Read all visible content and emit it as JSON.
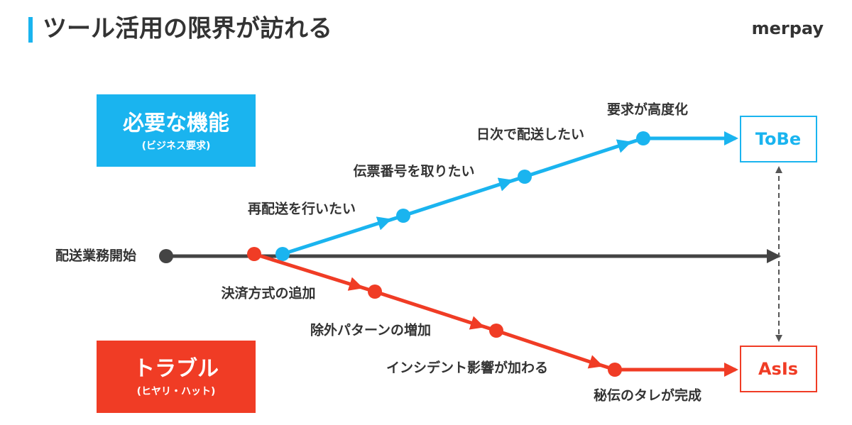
{
  "header": {
    "title": "ツール活用の限界が訪れる",
    "logo": "merpay"
  },
  "needs_box": {
    "title": "必要な機能",
    "subtitle": "(ビジネス要求)"
  },
  "trouble_box": {
    "title": "トラブル",
    "subtitle": "(ヒヤリ・ハット)"
  },
  "start_label": "配送業務開始",
  "tobe_label": "ToBe",
  "asis_label": "AsIs",
  "requirements": [
    "再配送を行いたい",
    "伝票番号を取りたい",
    "日次で配送したい",
    "要求が高度化"
  ],
  "troubles": [
    "決済方式の追加",
    "除外パターンの増加",
    "インシデント影響が加わる",
    "秘伝のタレが完成"
  ]
}
